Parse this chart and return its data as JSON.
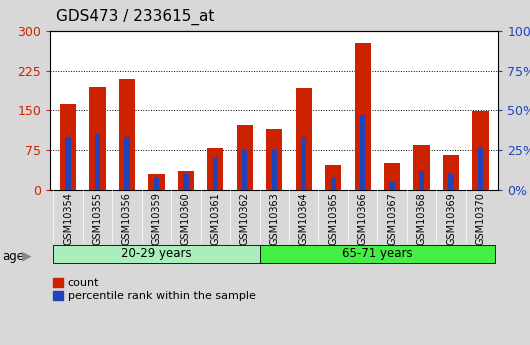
{
  "title": "GDS473 / 233615_at",
  "samples": [
    "GSM10354",
    "GSM10355",
    "GSM10356",
    "GSM10359",
    "GSM10360",
    "GSM10361",
    "GSM10362",
    "GSM10363",
    "GSM10364",
    "GSM10365",
    "GSM10366",
    "GSM10367",
    "GSM10368",
    "GSM10369",
    "GSM10370"
  ],
  "counts": [
    163,
    195,
    210,
    30,
    35,
    78,
    123,
    115,
    193,
    47,
    278,
    50,
    85,
    65,
    148
  ],
  "percentiles": [
    33,
    35,
    33,
    8,
    10,
    20,
    25,
    25,
    33,
    8,
    47,
    5,
    12,
    10,
    27
  ],
  "groups": [
    {
      "label": "20-29 years",
      "start": 0,
      "end": 7,
      "color": "#AAEEBB"
    },
    {
      "label": "65-71 years",
      "start": 7,
      "end": 15,
      "color": "#44EE44"
    }
  ],
  "age_label": "age",
  "left_ylim": [
    0,
    300
  ],
  "right_ylim": [
    0,
    100
  ],
  "left_yticks": [
    0,
    75,
    150,
    225,
    300
  ],
  "right_yticks": [
    0,
    25,
    50,
    75,
    100
  ],
  "right_yticklabels": [
    "0%",
    "25%",
    "50%",
    "75%",
    "100%"
  ],
  "bar_color_count": "#CC2200",
  "bar_color_pct": "#2244BB",
  "bar_width": 0.55,
  "pct_bar_width": 0.18,
  "grid_color": "#000000",
  "legend_count": "count",
  "legend_pct": "percentile rank within the sample",
  "outer_bg": "#D8D8D8",
  "plot_bg": "#FFFFFF",
  "xtick_bg": "#C8C8C8"
}
